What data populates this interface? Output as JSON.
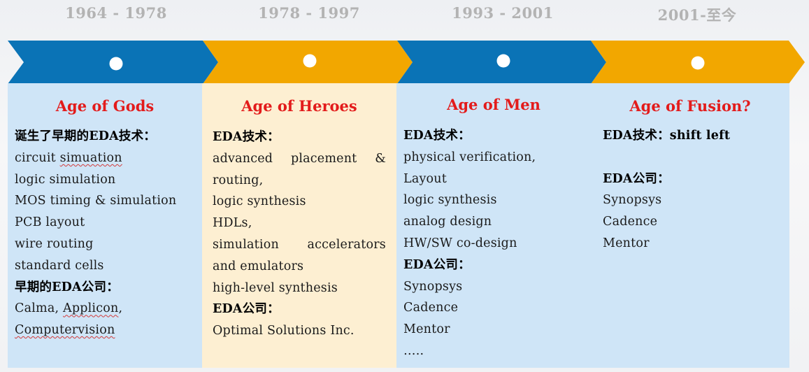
{
  "periods": [
    {
      "years": "1964 - 1978",
      "title": "Age of Gods",
      "lines": [
        {
          "text": "诞生了早期的EDA技术：",
          "bold": true
        },
        {
          "text": "circuit simuation",
          "misspelled": "simuation"
        },
        {
          "text": "logic simulation"
        },
        {
          "text": "MOS timing & simulation"
        },
        {
          "text": "PCB layout"
        },
        {
          "text": "wire routing"
        },
        {
          "text": "standard cells"
        },
        {
          "text": "早期的EDA公司：",
          "bold": true
        },
        {
          "text": "Calma, Applicon,",
          "misspelled": "Applicon"
        },
        {
          "text": "Computervision",
          "misspelled": "Computervision"
        }
      ]
    },
    {
      "years": "1978 - 1997",
      "title": "Age of Heroes",
      "lines": [
        {
          "text": "EDA技术：",
          "bold": true
        },
        {
          "text": "advanced placement &",
          "justify": true
        },
        {
          "text": "routing,"
        },
        {
          "text": "logic synthesis"
        },
        {
          "text": "HDLs,"
        },
        {
          "text": "simulation accelerators",
          "justify": true
        },
        {
          "text": "and emulators"
        },
        {
          "text": "high-level synthesis"
        },
        {
          "text": "EDA公司：",
          "bold": true
        },
        {
          "text": "Optimal Solutions Inc."
        }
      ]
    },
    {
      "years": "1993 - 2001",
      "title": "Age of Men",
      "lines": [
        {
          "text": "EDA技术：",
          "bold": true
        },
        {
          "text": "physical verification,"
        },
        {
          "text": "Layout"
        },
        {
          "text": "logic synthesis"
        },
        {
          "text": "analog design"
        },
        {
          "text": "HW/SW co-design"
        },
        {
          "text": "EDA公司：",
          "bold": true
        },
        {
          "text": "Synopsys"
        },
        {
          "text": "Cadence"
        },
        {
          "text": "Mentor"
        },
        {
          "text": "….."
        }
      ]
    },
    {
      "years": "2001-至今",
      "title": "Age of  Fusion?",
      "lines": [
        {
          "text": "EDA技术：shift left",
          "bold": true
        },
        {
          "text": ""
        },
        {
          "text": "EDA公司：",
          "bold": true
        },
        {
          "text": "Synopsys"
        },
        {
          "text": "Cadence"
        },
        {
          "text": "Mentor"
        }
      ]
    }
  ],
  "colors": {
    "arrow_blue": "#0a73b6",
    "arrow_orange": "#f2a700",
    "panel_blue": "#cfe5f7",
    "panel_cream": "#fdefd2",
    "title_red": "#e31b1b",
    "year_gray": "#b3b3b3"
  }
}
